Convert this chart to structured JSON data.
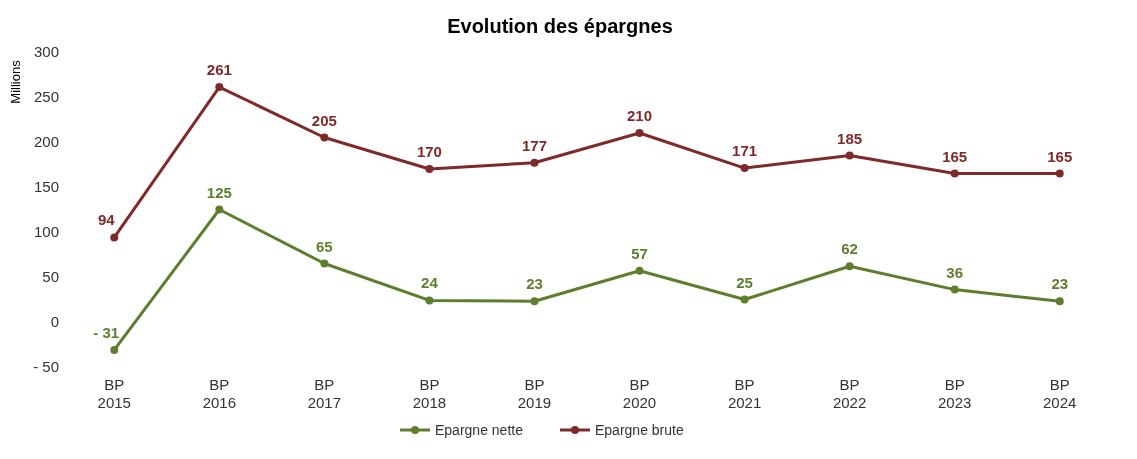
{
  "chart_data": {
    "type": "line",
    "title": "Evolution des épargnes",
    "ylabel": "Millions",
    "categories": [
      "BP 2015",
      "BP 2016",
      "BP 2017",
      "BP 2018",
      "BP 2019",
      "BP 2020",
      "BP 2021",
      "BP 2022",
      "BP 2023",
      "BP 2024"
    ],
    "series": [
      {
        "name": "Epargne nette",
        "color": "#5f7d2e",
        "values": [
          -31,
          125,
          65,
          24,
          23,
          57,
          25,
          62,
          36,
          23
        ],
        "value_labels": [
          "- 31",
          "125",
          "65",
          "24",
          "23",
          "57",
          "25",
          "62",
          "36",
          "23"
        ]
      },
      {
        "name": "Epargne brute",
        "color": "#7f2a2a",
        "values": [
          94,
          261,
          205,
          170,
          177,
          210,
          171,
          185,
          165,
          165
        ],
        "value_labels": [
          "94",
          "261",
          "205",
          "170",
          "177",
          "210",
          "171",
          "185",
          "165",
          "165"
        ]
      }
    ],
    "ylim": [
      -50,
      300
    ],
    "yticks": [
      {
        "value": -50,
        "label": "- 50"
      },
      0,
      50,
      100,
      150,
      200,
      250,
      300
    ],
    "marker": "circle",
    "legend": "bottom",
    "grid": false
  }
}
